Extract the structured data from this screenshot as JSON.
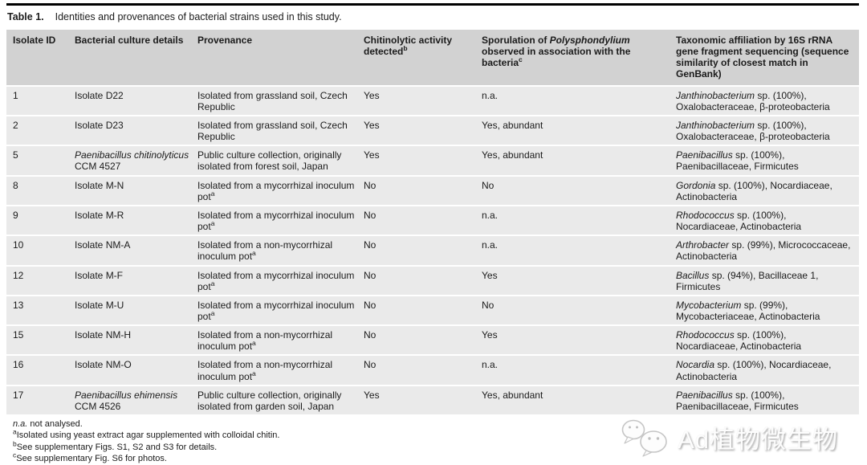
{
  "title": {
    "label": "Table 1.",
    "text": "Identities and provenances of bacterial strains used in this study."
  },
  "columns": [
    {
      "id": "isolate-id",
      "header": [
        {
          "t": "Isolate ID"
        }
      ]
    },
    {
      "id": "culture",
      "header": [
        {
          "t": "Bacterial culture details"
        }
      ]
    },
    {
      "id": "provenance",
      "header": [
        {
          "t": "Provenance"
        }
      ]
    },
    {
      "id": "chitinolytic",
      "header": [
        {
          "t": "Chitinolytic activity detected"
        },
        {
          "t": "b",
          "sup": true
        }
      ]
    },
    {
      "id": "sporulation",
      "header": [
        {
          "t": "Sporulation of "
        },
        {
          "t": "Polysphondylium",
          "i": true
        },
        {
          "t": " observed in association with the bacteria"
        },
        {
          "t": "c",
          "sup": true
        }
      ]
    },
    {
      "id": "taxonomy",
      "header": [
        {
          "t": "Taxonomic affiliation by 16S rRNA gene fragment sequencing (sequence similarity of closest match in GenBank)"
        }
      ]
    }
  ],
  "rows": [
    {
      "cells": [
        [
          {
            "t": "1"
          }
        ],
        [
          {
            "t": "Isolate D22"
          }
        ],
        [
          {
            "t": "Isolated from grassland soil, Czech Republic"
          }
        ],
        [
          {
            "t": "Yes"
          }
        ],
        [
          {
            "t": "n.a."
          }
        ],
        [
          {
            "t": "Janthinobacterium",
            "i": true
          },
          {
            "t": " sp. (100%), Oxalobacteraceae, β-proteobacteria"
          }
        ]
      ]
    },
    {
      "cells": [
        [
          {
            "t": "2"
          }
        ],
        [
          {
            "t": "Isolate D23"
          }
        ],
        [
          {
            "t": "Isolated from grassland soil, Czech Republic"
          }
        ],
        [
          {
            "t": "Yes"
          }
        ],
        [
          {
            "t": "Yes, abundant"
          }
        ],
        [
          {
            "t": "Janthinobacterium",
            "i": true
          },
          {
            "t": " sp. (100%), Oxalobacteraceae, β-proteobacteria"
          }
        ]
      ]
    },
    {
      "cells": [
        [
          {
            "t": "5"
          }
        ],
        [
          {
            "t": "Paenibacillus chitinolyticus",
            "i": true
          },
          {
            "t": " CCM 4527"
          }
        ],
        [
          {
            "t": "Public culture collection, originally isolated from forest soil, Japan"
          }
        ],
        [
          {
            "t": "Yes"
          }
        ],
        [
          {
            "t": "Yes, abundant"
          }
        ],
        [
          {
            "t": "Paenibacillus",
            "i": true
          },
          {
            "t": " sp. (100%), Paenibacillaceae, Firmicutes"
          }
        ]
      ]
    },
    {
      "cells": [
        [
          {
            "t": "8"
          }
        ],
        [
          {
            "t": "Isolate M-N"
          }
        ],
        [
          {
            "t": "Isolated from a mycorrhizal inoculum pot"
          },
          {
            "t": "a",
            "sup": true
          }
        ],
        [
          {
            "t": "No"
          }
        ],
        [
          {
            "t": "No"
          }
        ],
        [
          {
            "t": "Gordonia",
            "i": true
          },
          {
            "t": " sp. (100%), Nocardiaceae, Actinobacteria"
          }
        ]
      ]
    },
    {
      "cells": [
        [
          {
            "t": "9"
          }
        ],
        [
          {
            "t": "Isolate M-R"
          }
        ],
        [
          {
            "t": "Isolated from a mycorrhizal inoculum pot"
          },
          {
            "t": "a",
            "sup": true
          }
        ],
        [
          {
            "t": "No"
          }
        ],
        [
          {
            "t": "n.a."
          }
        ],
        [
          {
            "t": "Rhodococcus",
            "i": true
          },
          {
            "t": " sp. (100%), Nocardiaceae, Actinobacteria"
          }
        ]
      ]
    },
    {
      "cells": [
        [
          {
            "t": "10"
          }
        ],
        [
          {
            "t": "Isolate NM-A"
          }
        ],
        [
          {
            "t": "Isolated from a non-mycorrhizal inoculum pot"
          },
          {
            "t": "a",
            "sup": true
          }
        ],
        [
          {
            "t": "No"
          }
        ],
        [
          {
            "t": "n.a."
          }
        ],
        [
          {
            "t": "Arthrobacter",
            "i": true
          },
          {
            "t": " sp. (99%), Micrococcaceae, Actinobacteria"
          }
        ]
      ]
    },
    {
      "cells": [
        [
          {
            "t": "12"
          }
        ],
        [
          {
            "t": "Isolate M-F"
          }
        ],
        [
          {
            "t": "Isolated from a mycorrhizal inoculum pot"
          },
          {
            "t": "a",
            "sup": true
          }
        ],
        [
          {
            "t": "No"
          }
        ],
        [
          {
            "t": "Yes"
          }
        ],
        [
          {
            "t": "Bacillus",
            "i": true
          },
          {
            "t": " sp. (94%), Bacillaceae 1, Firmicutes"
          }
        ]
      ]
    },
    {
      "cells": [
        [
          {
            "t": "13"
          }
        ],
        [
          {
            "t": "Isolate M-U"
          }
        ],
        [
          {
            "t": "Isolated from a mycorrhizal inoculum pot"
          },
          {
            "t": "a",
            "sup": true
          }
        ],
        [
          {
            "t": "No"
          }
        ],
        [
          {
            "t": "No"
          }
        ],
        [
          {
            "t": "Mycobacterium",
            "i": true
          },
          {
            "t": " sp. (99%), Mycobacteriaceae, Actinobacteria"
          }
        ]
      ]
    },
    {
      "cells": [
        [
          {
            "t": "15"
          }
        ],
        [
          {
            "t": "Isolate NM-H"
          }
        ],
        [
          {
            "t": "Isolated from a non-mycorrhizal inoculum pot"
          },
          {
            "t": "a",
            "sup": true
          }
        ],
        [
          {
            "t": "No"
          }
        ],
        [
          {
            "t": "Yes"
          }
        ],
        [
          {
            "t": "Rhodococcus",
            "i": true
          },
          {
            "t": " sp. (100%), Nocardiaceae, Actinobacteria"
          }
        ]
      ]
    },
    {
      "cells": [
        [
          {
            "t": "16"
          }
        ],
        [
          {
            "t": "Isolate NM-O"
          }
        ],
        [
          {
            "t": "Isolated from a non-mycorrhizal inoculum pot"
          },
          {
            "t": "a",
            "sup": true
          }
        ],
        [
          {
            "t": "No"
          }
        ],
        [
          {
            "t": "n.a."
          }
        ],
        [
          {
            "t": "Nocardia",
            "i": true
          },
          {
            "t": " sp. (100%), Nocardiaceae, Actinobacteria"
          }
        ]
      ]
    },
    {
      "cells": [
        [
          {
            "t": "17"
          }
        ],
        [
          {
            "t": "Paenibacillus ehimensis",
            "i": true
          },
          {
            "t": " CCM 4526"
          }
        ],
        [
          {
            "t": "Public culture collection, originally isolated from garden soil, Japan"
          }
        ],
        [
          {
            "t": "Yes"
          }
        ],
        [
          {
            "t": "Yes, abundant"
          }
        ],
        [
          {
            "t": "Paenibacillus",
            "i": true
          },
          {
            "t": " sp. (100%), Paenibacillaceae, Firmicutes"
          }
        ]
      ]
    }
  ],
  "footnotes": [
    [
      {
        "t": "n.a.",
        "i": true
      },
      {
        "t": " not analysed."
      }
    ],
    [
      {
        "t": "a",
        "sup": true
      },
      {
        "t": "Isolated using yeast extract agar supplemented with colloidal chitin."
      }
    ],
    [
      {
        "t": "b",
        "sup": true
      },
      {
        "t": "See supplementary Figs. S1, S2 and S3 for details."
      }
    ],
    [
      {
        "t": "c",
        "sup": true
      },
      {
        "t": "See supplementary Fig. S6 for photos."
      }
    ]
  ],
  "watermark": {
    "icon": "wechat-icon",
    "text": "Ad植物微生物"
  },
  "colors": {
    "rule": "#000000",
    "header_bg": "#d2d2d2",
    "row_bg": "#eaeaea",
    "text": "#1b1b1b",
    "watermark_stroke": "#c6c6c6"
  }
}
